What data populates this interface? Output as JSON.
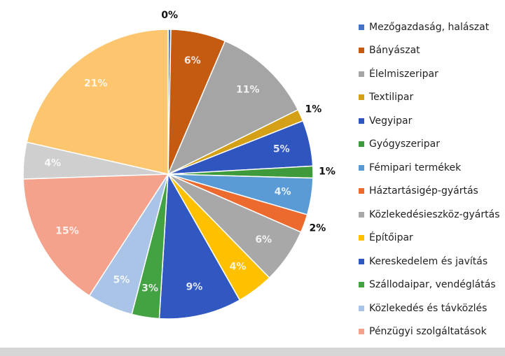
{
  "chart_data": {
    "type": "pie",
    "start_angle_deg": 0,
    "direction": "clockwise",
    "legend_position": "right",
    "slices": [
      {
        "label": "Mezőgazdaság, halászat",
        "value": 0.3,
        "display": "0%",
        "color": "#4472c4"
      },
      {
        "label": "Bányászat",
        "value": 6,
        "display": "6%",
        "color": "#c55a11"
      },
      {
        "label": "Élelmiszeripar",
        "value": 11,
        "display": "11%",
        "color": "#a5a5a5"
      },
      {
        "label": "Textilipar",
        "value": 1.3,
        "display": "1%",
        "color": "#d4a017"
      },
      {
        "label": "Vegyipar",
        "value": 5,
        "display": "5%",
        "color": "#2f55bf"
      },
      {
        "label": "Gyógyszeripar",
        "value": 1.3,
        "display": "1%",
        "color": "#3e9a3a"
      },
      {
        "label": "Fémipari termékek",
        "value": 4,
        "display": "4%",
        "color": "#5b9bd5"
      },
      {
        "label": "Háztartásigép-gyártás",
        "value": 2,
        "display": "2%",
        "color": "#ed6a2e"
      },
      {
        "label": "Közlekedésieszköz-gyártás",
        "value": 6,
        "display": "6%",
        "color": "#a8a8a8"
      },
      {
        "label": "Építőipar",
        "value": 4,
        "display": "4%",
        "color": "#ffc000"
      },
      {
        "label": "Kereskedelem és javítás",
        "value": 9,
        "display": "9%",
        "color": "#3158c0"
      },
      {
        "label": "Szállodaipar, vendéglátás",
        "value": 3,
        "display": "3%",
        "color": "#43a343"
      },
      {
        "label": "Közlekedés és távközlés",
        "value": 5,
        "display": "5%",
        "color": "#a9c4e6"
      },
      {
        "label": "Pénzügyi szolgáltatások",
        "value": 15,
        "display": "15%",
        "color": "#f4a28c"
      },
      {
        "label": "",
        "value": 4,
        "display": "4%",
        "color": "#cfcfcf"
      },
      {
        "label": "",
        "value": 21,
        "display": "21%",
        "color": "#fcc56e"
      }
    ]
  }
}
